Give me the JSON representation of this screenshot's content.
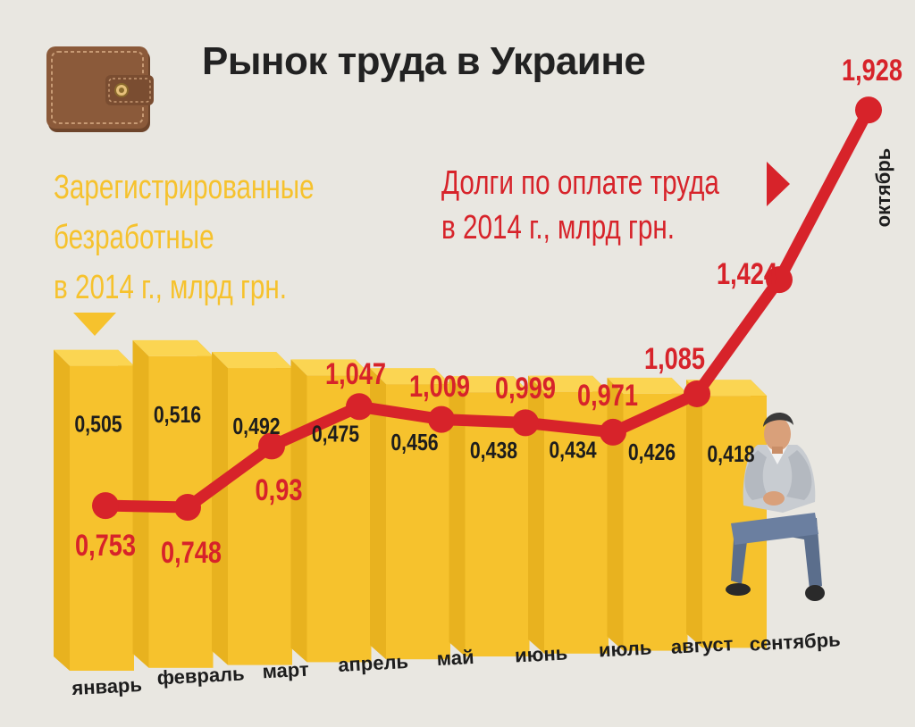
{
  "title": "Рынок труда в Украине",
  "captions": {
    "unemployed_line1": "Зарегистрированные",
    "unemployed_line2": "безработные",
    "unemployed_line3": "в 2014 г., млрд грн.",
    "debt_line1": "Долги по оплате труда",
    "debt_line2": "в 2014 г., млрд грн."
  },
  "colors": {
    "bar": "#f6c22d",
    "bar_side": "#dca31d",
    "bar_top": "#fbd552",
    "line": "#d7232a",
    "background": "#e9e7e1",
    "wallet": "#8b5a3a"
  },
  "icons": [
    "wallet-icon",
    "sitting-man-illustration"
  ],
  "chart_data": {
    "type": "bar+line",
    "categories": [
      "январь",
      "февраль",
      "март",
      "апрель",
      "май",
      "июнь",
      "июль",
      "август",
      "сентябрь",
      "октябрь"
    ],
    "bars": {
      "values": [
        0.505,
        0.516,
        0.492,
        0.475,
        0.456,
        0.438,
        0.434,
        0.426,
        0.418
      ],
      "labels": [
        "0,505",
        "0,516",
        "0,492",
        "0,475",
        "0,456",
        "0,438",
        "0,434",
        "0,426",
        "0,418"
      ]
    },
    "line": {
      "values": [
        0.753,
        0.748,
        0.93,
        1.047,
        1.009,
        0.999,
        0.971,
        1.085,
        1.424,
        1.928
      ],
      "labels": [
        "0,753",
        "0,748",
        "0,93",
        "1,047",
        "1,009",
        "0,999",
        "0,971",
        "1,085",
        "1,424",
        "1,928"
      ]
    }
  }
}
